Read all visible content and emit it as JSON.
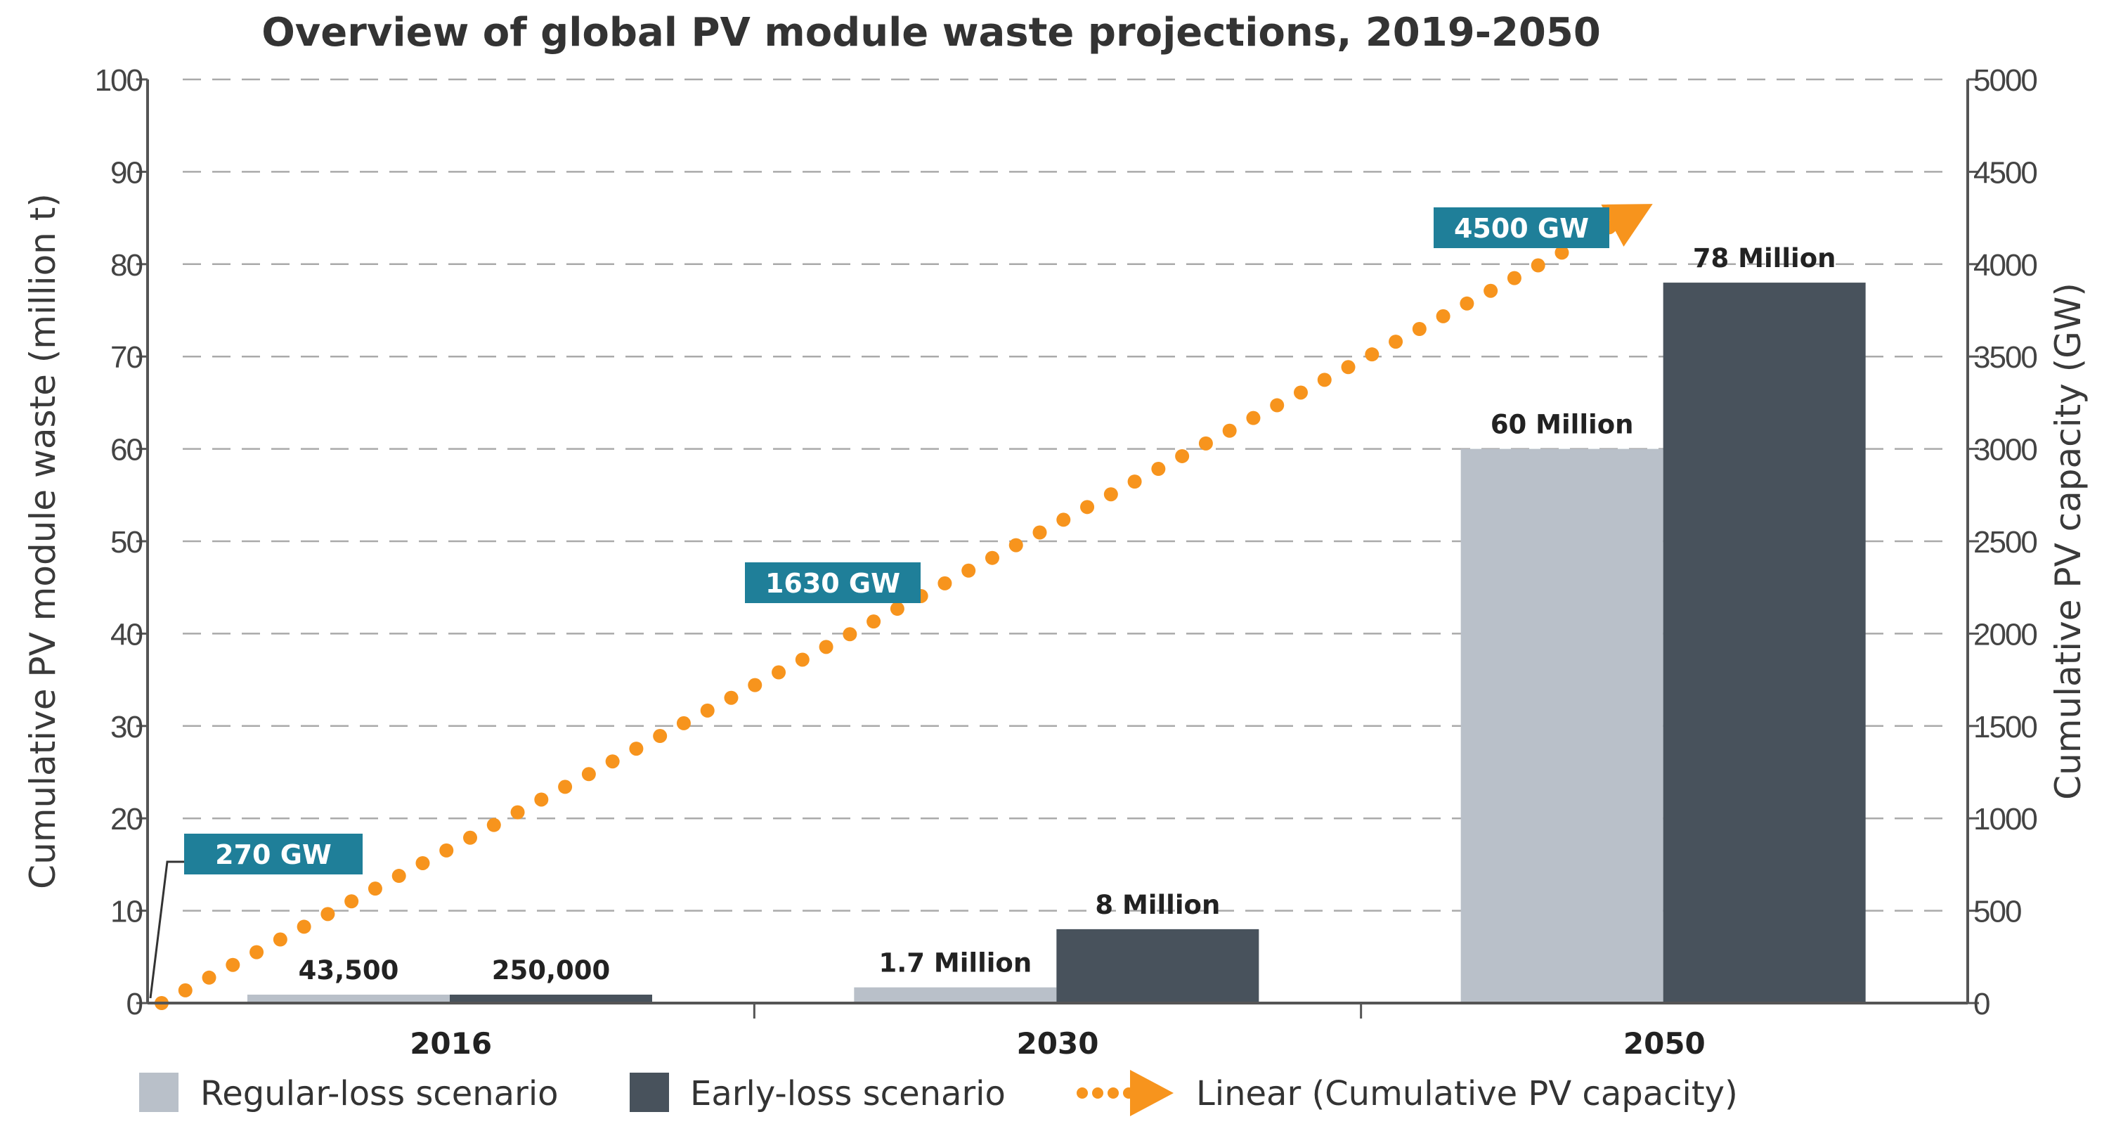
{
  "chart_data": {
    "type": "bar",
    "title": "Overview of global PV module waste projections, 2019-2050",
    "ylabel": "Cumulative PV module waste (million t)",
    "y2label": "Cumulative PV capacity (GW)",
    "categories": [
      "2016",
      "2030",
      "2050"
    ],
    "ylim": [
      0,
      100
    ],
    "y2lim": [
      0,
      5000
    ],
    "yticks": [
      "0",
      "10",
      "20",
      "30",
      "40",
      "50",
      "60",
      "70",
      "80",
      "90",
      "100"
    ],
    "y2ticks": [
      "0",
      "500",
      "1000",
      "1500",
      "2000",
      "2500",
      "3000",
      "3500",
      "4000",
      "4500",
      "5000"
    ],
    "grid": true,
    "series": [
      {
        "name": "Regular-loss scenario",
        "color": "#b9c0c9",
        "values": [
          0.0435,
          1.7,
          60
        ],
        "labels": [
          "43,500",
          "1.7 Million",
          "60 Million"
        ]
      },
      {
        "name": "Early-loss scenario",
        "color": "#48525c",
        "values": [
          0.25,
          8,
          78
        ],
        "labels": [
          "250,000",
          "8 Million",
          "78 Million"
        ]
      }
    ],
    "line": {
      "name": "Linear (Cumulative PV capacity)",
      "color": "#f7941d",
      "axis": "secondary",
      "start": 0,
      "end": 4200
    },
    "callouts": [
      {
        "text": "270 GW",
        "color": "#1f7f99"
      },
      {
        "text": "1630 GW",
        "color": "#1f7f99"
      },
      {
        "text": "4500 GW",
        "color": "#1f7f99"
      }
    ],
    "legend": {
      "position": "bottom",
      "items": [
        "Regular-loss scenario",
        "Early-loss scenario",
        "Linear (Cumulative PV capacity)"
      ]
    }
  }
}
